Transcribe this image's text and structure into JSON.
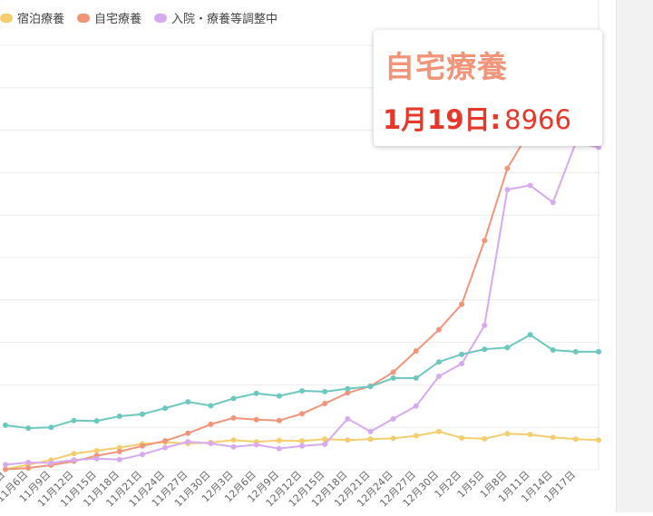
{
  "legend": [
    {
      "label": "宿泊療養",
      "color": "#f4cd6e"
    },
    {
      "label": "自宅療養",
      "color": "#f0957a"
    },
    {
      "label": "入院・療養等調整中",
      "color": "#d7aaf0"
    }
  ],
  "tooltip": {
    "series": "自宅療養",
    "date": "1月19日:",
    "value": "8966"
  },
  "chart_data": {
    "type": "line",
    "x": [
      "11月3日",
      "11月6日",
      "11月9日",
      "11月12日",
      "11月15日",
      "11月18日",
      "11月21日",
      "11月24日",
      "11月27日",
      "11月30日",
      "12月3日",
      "12月6日",
      "12月9日",
      "12月12日",
      "12月15日",
      "12月18日",
      "12月21日",
      "12月24日",
      "12月27日",
      "12月30日",
      "1月2日",
      "1月5日",
      "1月8日",
      "1月11日",
      "1月14日",
      "1月17日",
      "1月19日"
    ],
    "xlabels": [
      "11月3日",
      "11月6日",
      "11月9日",
      "11月12日",
      "11月15日",
      "11月18日",
      "11月21日",
      "11月24日",
      "11月27日",
      "11月30日",
      "12月3日",
      "12月6日",
      "12月9日",
      "12月12日",
      "12月15日",
      "12月18日",
      "12月21日",
      "12月24日",
      "12月27日",
      "12月30日",
      "1月2日",
      "1月5日",
      "1月8日",
      "1月11日",
      "1月14日",
      "1月17日"
    ],
    "ylim": [
      0,
      10000
    ],
    "grid": true,
    "legend_position": "top-left",
    "series": [
      {
        "name": "宿泊療養",
        "color": "#f4cd6e",
        "values": [
          10,
          120,
          230,
          380,
          450,
          520,
          610,
          650,
          620,
          640,
          700,
          660,
          690,
          680,
          720,
          700,
          720,
          740,
          800,
          900,
          750,
          730,
          850,
          830,
          760,
          720,
          700
        ]
      },
      {
        "name": "自宅療養",
        "color": "#f0957a",
        "values": [
          10,
          40,
          110,
          200,
          330,
          430,
          560,
          680,
          860,
          1070,
          1220,
          1180,
          1160,
          1320,
          1560,
          1810,
          1970,
          2300,
          2800,
          3300,
          3900,
          5400,
          7100,
          8000,
          8400,
          9100,
          8966
        ]
      },
      {
        "name": "入院・療養等調整中",
        "color": "#d7aaf0",
        "values": [
          120,
          170,
          160,
          230,
          260,
          240,
          360,
          520,
          660,
          620,
          540,
          590,
          500,
          560,
          600,
          1200,
          900,
          1200,
          1500,
          2200,
          2500,
          3400,
          6600,
          6700,
          6300,
          7700,
          7600
        ]
      },
      {
        "name": "",
        "color": "#6cc8bf",
        "values": [
          1050,
          980,
          1000,
          1160,
          1150,
          1260,
          1310,
          1450,
          1600,
          1510,
          1680,
          1800,
          1740,
          1860,
          1840,
          1910,
          1960,
          2160,
          2160,
          2540,
          2720,
          2840,
          2880,
          3180,
          2820,
          2780,
          2780
        ]
      }
    ]
  }
}
